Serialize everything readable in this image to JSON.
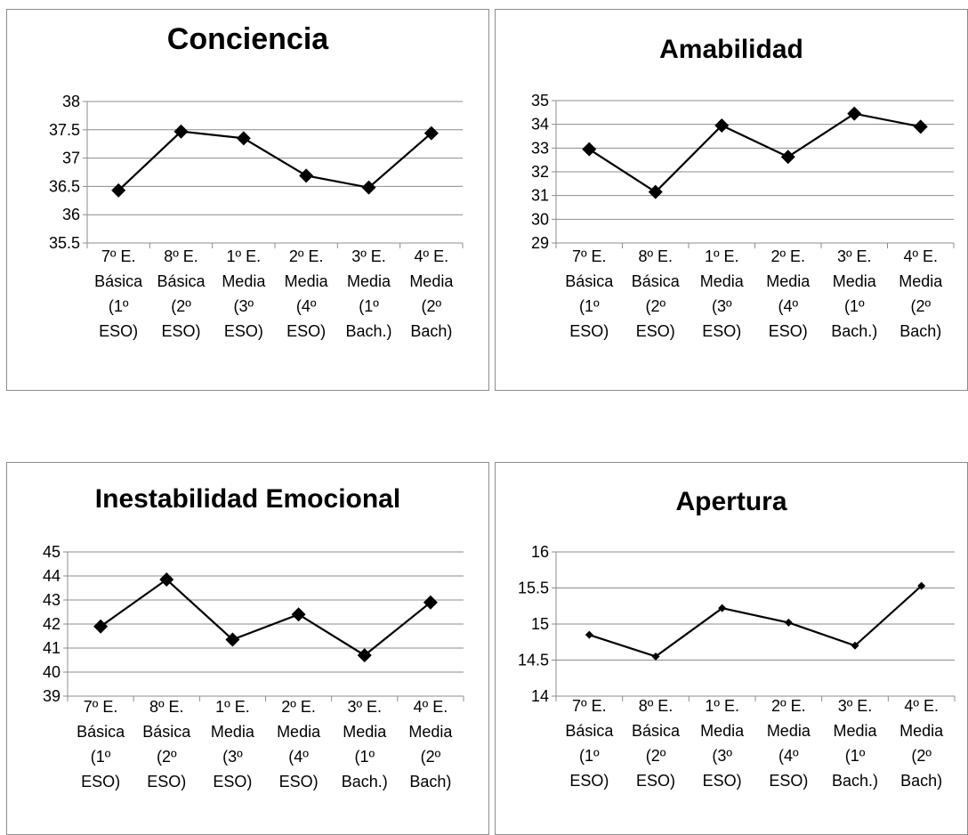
{
  "chart_data": [
    {
      "type": "line",
      "title": "Conciencia",
      "categories": [
        [
          "7º E.",
          "Básica",
          "(1º",
          "ESO)"
        ],
        [
          "8º E.",
          "Básica",
          "(2º",
          "ESO)"
        ],
        [
          "1º E.",
          "Media",
          "(3º",
          "ESO)"
        ],
        [
          "2º E.",
          "Media",
          "(4º",
          "ESO)"
        ],
        [
          "3º E.",
          "Media",
          "(1º",
          "Bach.)"
        ],
        [
          "4º E.",
          "Media",
          "(2º",
          "Bach)"
        ]
      ],
      "values": [
        36.43,
        37.47,
        37.35,
        36.69,
        36.48,
        37.44
      ],
      "ylim": [
        35.5,
        38
      ],
      "yticks": [
        "35.5",
        "36",
        "36.5",
        "37",
        "37.5",
        "38"
      ],
      "marker": "diamond",
      "grid": true
    },
    {
      "type": "line",
      "title": "Amabilidad",
      "categories": [
        [
          "7º E.",
          "Básica",
          "(1º",
          "ESO)"
        ],
        [
          "8º E.",
          "Básica",
          "(2º",
          "ESO)"
        ],
        [
          "1º E.",
          "Media",
          "(3º",
          "ESO)"
        ],
        [
          "2º E.",
          "Media",
          "(4º",
          "ESO)"
        ],
        [
          "3º E.",
          "Media",
          "(1º",
          "Bach.)"
        ],
        [
          "4º E.",
          "Media",
          "(2º",
          "Bach)"
        ]
      ],
      "values": [
        32.95,
        31.15,
        33.95,
        32.63,
        34.45,
        33.9
      ],
      "ylim": [
        29,
        35
      ],
      "yticks": [
        "29",
        "30",
        "31",
        "32",
        "33",
        "34",
        "35"
      ],
      "marker": "diamond",
      "grid": true
    },
    {
      "type": "line",
      "title": "Inestabilidad Emocional",
      "categories": [
        [
          "7º E.",
          "Básica",
          "(1º",
          "ESO)"
        ],
        [
          "8º E.",
          "Básica",
          "(2º",
          "ESO)"
        ],
        [
          "1º E.",
          "Media",
          "(3º",
          "ESO)"
        ],
        [
          "2º E.",
          "Media",
          "(4º",
          "ESO)"
        ],
        [
          "3º E.",
          "Media",
          "(1º",
          "Bach.)"
        ],
        [
          "4º E.",
          "Media",
          "(2º",
          "Bach)"
        ]
      ],
      "values": [
        41.9,
        43.85,
        41.35,
        42.4,
        40.7,
        42.9
      ],
      "ylim": [
        39,
        45
      ],
      "yticks": [
        "39",
        "40",
        "41",
        "42",
        "43",
        "44",
        "45"
      ],
      "marker": "diamond",
      "grid": true
    },
    {
      "type": "line",
      "title": "Apertura",
      "categories": [
        [
          "7º E.",
          "Básica",
          "(1º",
          "ESO)"
        ],
        [
          "8º E.",
          "Básica",
          "(2º",
          "ESO)"
        ],
        [
          "1º E.",
          "Media",
          "(3º",
          "ESO)"
        ],
        [
          "2º E.",
          "Media",
          "(4º",
          "ESO)"
        ],
        [
          "3º E.",
          "Media",
          "(1º",
          "Bach.)"
        ],
        [
          "4º E.",
          "Media",
          "(2º",
          "Bach)"
        ]
      ],
      "values": [
        14.85,
        14.55,
        15.22,
        15.02,
        14.7,
        15.53
      ],
      "ylim": [
        14,
        16
      ],
      "yticks": [
        "14",
        "14.5",
        "15",
        "15.5",
        "16"
      ],
      "marker": "diamond-small",
      "grid": true
    }
  ]
}
